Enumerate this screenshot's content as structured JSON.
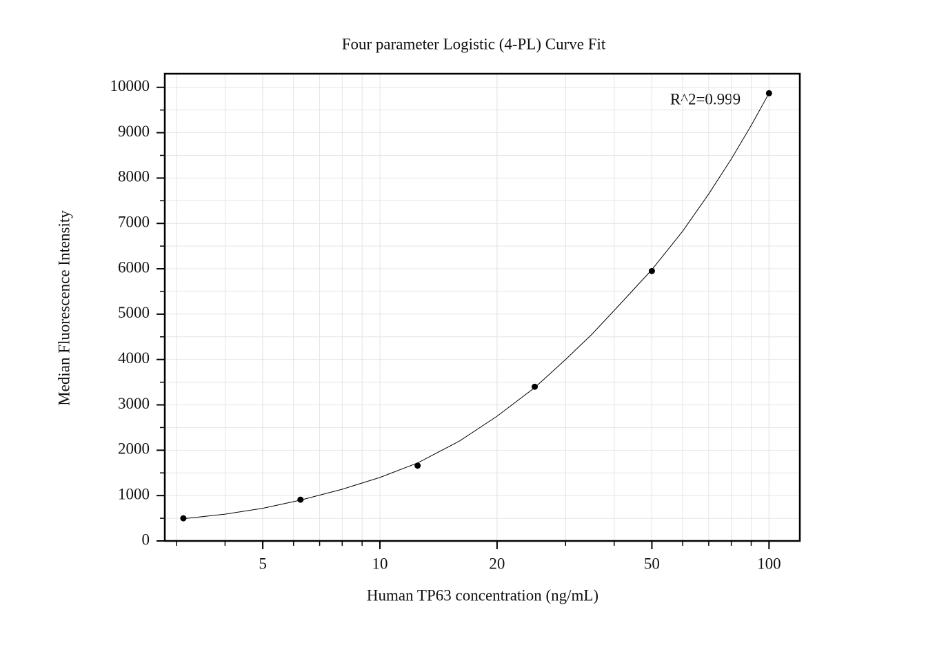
{
  "chart_data": {
    "type": "scatter",
    "title": "Four parameter Logistic (4-PL) Curve Fit",
    "x_label": "Human TP63 concentration (ng/mL)",
    "y_label": "Median Fluorescence Intensity",
    "annotation": "R^2=0.999",
    "x": [
      3.125,
      6.25,
      12.5,
      25,
      50,
      100
    ],
    "values": [
      500,
      910,
      1660,
      3400,
      5950,
      9870
    ],
    "color": "#000000",
    "curve": {
      "x": [
        3.125,
        4,
        5,
        6.25,
        8,
        10,
        12.5,
        16,
        20,
        25,
        30,
        35,
        40,
        50,
        60,
        70,
        80,
        90,
        100
      ],
      "values": [
        490,
        590,
        720,
        900,
        1140,
        1400,
        1720,
        2200,
        2750,
        3380,
        4000,
        4550,
        5080,
        5980,
        6830,
        7650,
        8420,
        9160,
        9870
      ],
      "color": "#000000"
    },
    "xscale": "log",
    "xlim": [
      2.8,
      120
    ],
    "xticks": [
      5,
      10,
      20,
      50,
      100
    ],
    "ylim": [
      0,
      10300
    ],
    "yticks": [
      0,
      1000,
      2000,
      3000,
      4000,
      5000,
      6000,
      7000,
      8000,
      9000,
      10000
    ],
    "grid": true
  }
}
